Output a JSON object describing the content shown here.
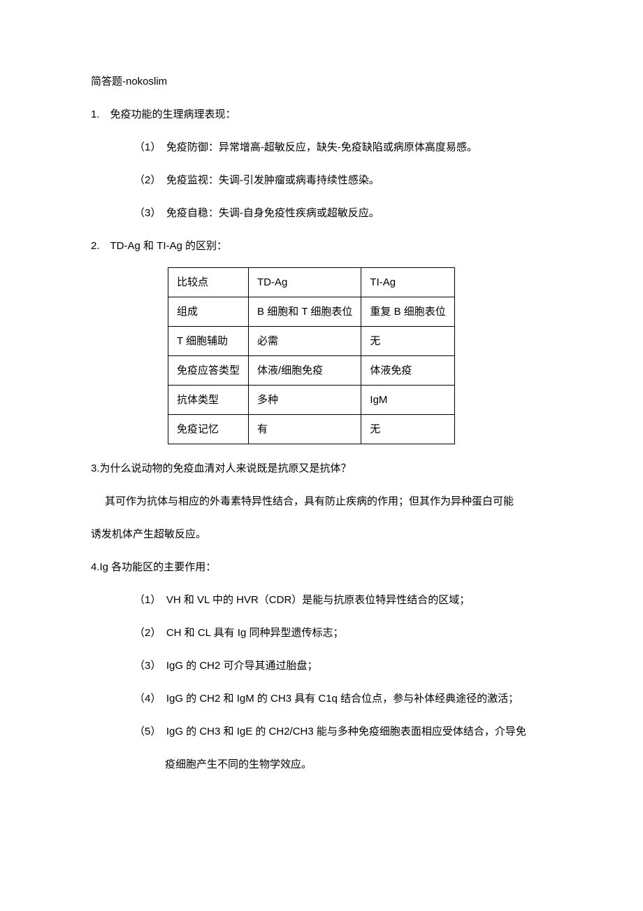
{
  "title": "简答题-nokoslim",
  "q1": {
    "heading": "1.　免疫功能的生理病理表现：",
    "items": [
      "（1）　免疫防御：异常增高-超敏反应，缺失-免疫缺陷或病原体高度易感。",
      "（2）　免疫监视：失调-引发肿瘤或病毒持续性感染。",
      "（3）　免疫自稳：失调-自身免疫性疾病或超敏反应。"
    ]
  },
  "q2": {
    "heading": "2.　TD-Ag 和 TI-Ag 的区别：",
    "table": {
      "rows": [
        [
          "比较点",
          "TD-Ag",
          "TI-Ag"
        ],
        [
          "组成",
          "B 细胞和 T 细胞表位",
          "重复 B 细胞表位"
        ],
        [
          "T 细胞辅助",
          "必需",
          "无"
        ],
        [
          "免疫应答类型",
          "体液/细胞免疫",
          "体液免疫"
        ],
        [
          "抗体类型",
          "多种",
          "IgM"
        ],
        [
          "免疫记忆",
          "有",
          "无"
        ]
      ]
    }
  },
  "q3": {
    "heading": "3.为什么说动物的免疫血清对人来说既是抗原又是抗体？",
    "p1": "其可作为抗体与相应的外毒素特异性结合，具有防止疾病的作用；但其作为异种蛋白可能",
    "p2": "诱发机体产生超敏反应。"
  },
  "q4": {
    "heading": "4.Ig 各功能区的主要作用：",
    "items": [
      "（1）　VH 和 VL 中的 HVR（CDR）是能与抗原表位特异性结合的区域；",
      "（2）　CH 和 CL 具有 Ig 同种异型遗传标志；",
      "（3）　IgG 的 CH2 可介导其通过胎盘；",
      "（4）　IgG 的 CH2 和 IgM 的 CH3 具有 C1q 结合位点，参与补体经典途径的激活；"
    ],
    "item5a": "（5）　IgG 的 CH3 和 IgE 的 CH2/CH3 能与多种免疫细胞表面相应受体结合，介导免",
    "item5b": "疫细胞产生不同的生物学效应。"
  }
}
